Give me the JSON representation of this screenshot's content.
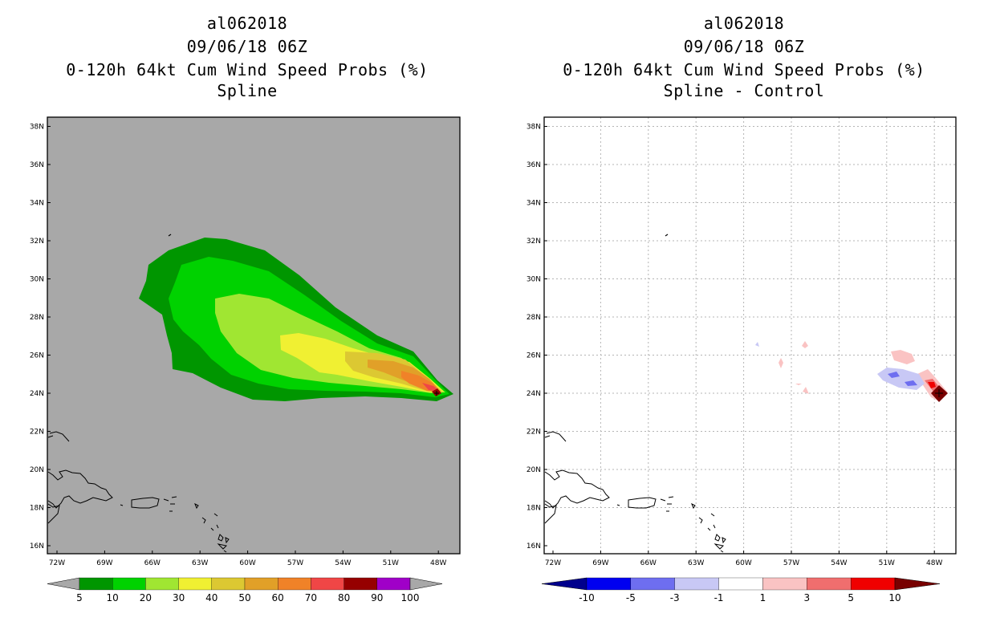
{
  "panels": [
    {
      "id": "spline",
      "title_lines": [
        "al062018",
        "09/06/18 06Z",
        "0-120h 64kt Cum Wind Speed Probs (%)",
        "Spline"
      ],
      "map_background": "#a8a8a8",
      "colorbar": {
        "labels": [
          "5",
          "10",
          "20",
          "30",
          "40",
          "50",
          "60",
          "70",
          "80",
          "90",
          "100"
        ],
        "colors": [
          "#a8a8a8",
          "#009600",
          "#00d200",
          "#a0e632",
          "#f0f032",
          "#dcc832",
          "#e1a028",
          "#f08228",
          "#f04646",
          "#960000",
          "#a000c8",
          "#a8a8a8"
        ]
      }
    },
    {
      "id": "diff",
      "title_lines": [
        "al062018",
        "09/06/18 06Z",
        "0-120h 64kt Cum Wind Speed Probs (%)",
        "Spline - Control"
      ],
      "map_background": "#ffffff",
      "colorbar": {
        "labels": [
          "-10",
          "-5",
          "-3",
          "-1",
          "1",
          "3",
          "5",
          "10"
        ],
        "colors": [
          "#00008c",
          "#0000f0",
          "#6e6ef0",
          "#c8c8f5",
          "#ffffff",
          "#fac3c3",
          "#f06e6e",
          "#f00000",
          "#780000"
        ]
      }
    }
  ],
  "axes": {
    "lat_labels": [
      "16N",
      "18N",
      "20N",
      "22N",
      "24N",
      "26N",
      "28N",
      "30N",
      "32N",
      "34N",
      "36N",
      "38N"
    ],
    "lon_labels": [
      "72W",
      "69W",
      "66W",
      "63W",
      "60W",
      "57W",
      "54W",
      "51W",
      "48W"
    ]
  }
}
